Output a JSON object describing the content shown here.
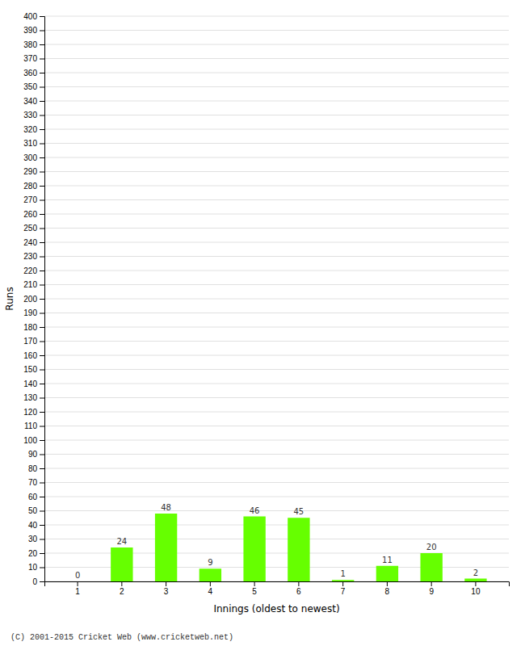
{
  "chart_data": {
    "type": "bar",
    "categories": [
      "1",
      "2",
      "3",
      "4",
      "5",
      "6",
      "7",
      "8",
      "9",
      "10"
    ],
    "values": [
      0,
      24,
      48,
      9,
      46,
      45,
      1,
      11,
      20,
      2
    ],
    "color": "#66ff00",
    "x_label": "Innings (oldest to newest)",
    "y_label": "Runs",
    "ylim": [
      0,
      400
    ],
    "yticks": [
      0,
      10,
      20,
      30,
      40,
      50,
      60,
      70,
      80,
      90,
      100,
      110,
      120,
      130,
      140,
      150,
      160,
      170,
      180,
      190,
      200,
      210,
      220,
      230,
      240,
      250,
      260,
      270,
      280,
      290,
      300,
      310,
      320,
      330,
      340,
      350,
      360,
      370,
      380,
      390,
      400
    ],
    "grid": true,
    "data_labels": true,
    "annotations": [
      "(C) 2001-2015 Cricket Web (www.cricketweb.net)"
    ]
  }
}
